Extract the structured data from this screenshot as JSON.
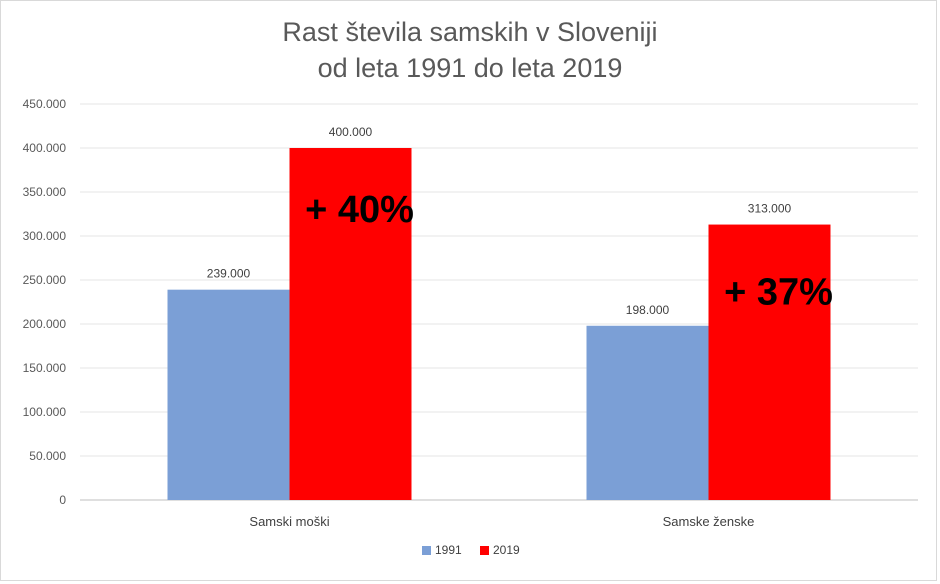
{
  "chart_data": {
    "type": "bar",
    "title": [
      "Rast števila samskih v Sloveniji",
      "od leta 1991 do leta 2019"
    ],
    "categories": [
      "Samski moški",
      "Samske ženske"
    ],
    "series": [
      {
        "name": "1991",
        "color": "#7b9fd6",
        "values": [
          239000,
          198000
        ],
        "labels": [
          "239.000",
          "198.000"
        ]
      },
      {
        "name": "2019",
        "color": "#ff0000",
        "values": [
          400000,
          313000
        ],
        "labels": [
          "400.000",
          "313.000"
        ]
      }
    ],
    "annotations": [
      "+ 40%",
      "+ 37%"
    ],
    "ylim": [
      0,
      450000
    ],
    "yticks": [
      {
        "value": 0,
        "label": "0"
      },
      {
        "value": 50000,
        "label": "50.000"
      },
      {
        "value": 100000,
        "label": "100.000"
      },
      {
        "value": 150000,
        "label": "150.000"
      },
      {
        "value": 200000,
        "label": "200.000"
      },
      {
        "value": 250000,
        "label": "250.000"
      },
      {
        "value": 300000,
        "label": "300.000"
      },
      {
        "value": 350000,
        "label": "350.000"
      },
      {
        "value": 400000,
        "label": "400.000"
      },
      {
        "value": 450000,
        "label": "450.000"
      }
    ],
    "grid": true,
    "legend_position": "bottom-center",
    "gridline_color": "#e6e6e6",
    "axis_color": "#bfbfbf"
  }
}
